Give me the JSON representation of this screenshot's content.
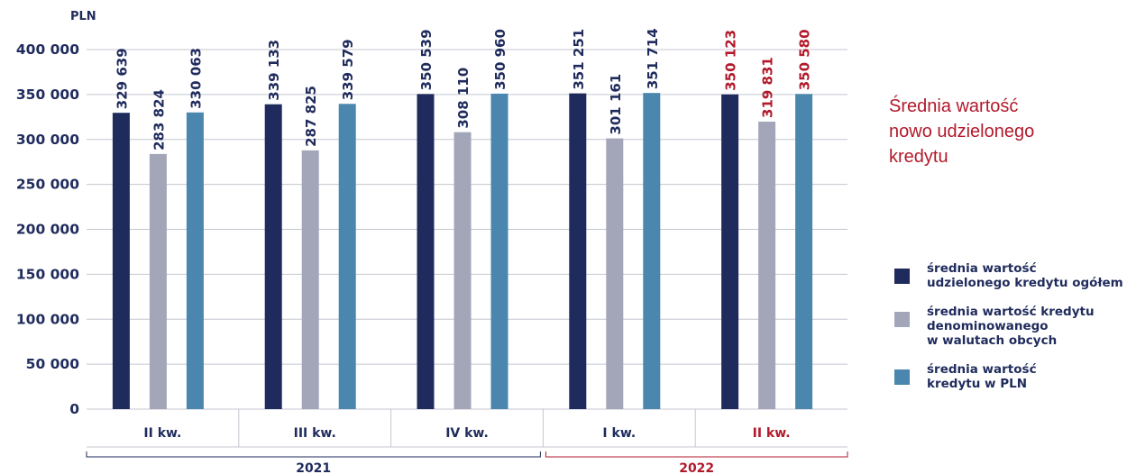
{
  "chart_data": {
    "type": "bar",
    "ylabel": "PLN",
    "ylim": [
      0,
      400000
    ],
    "ytick_values": [
      0,
      50000,
      100000,
      150000,
      200000,
      250000,
      300000,
      350000,
      400000
    ],
    "ytick_labels": [
      "0",
      "50 000",
      "100 000",
      "150 000",
      "200 000",
      "250 000",
      "300 000",
      "350 000",
      "400 000"
    ],
    "categories": [
      "II kw.",
      "III kw.",
      "IV kw.",
      "I kw.",
      "II kw."
    ],
    "years": [
      {
        "label": "2021",
        "categories": [
          0,
          1,
          2
        ]
      },
      {
        "label": "2022",
        "categories": [
          3,
          4
        ]
      }
    ],
    "series": [
      {
        "name": "średnia wartość udzielonego kredytu ogółem",
        "values": [
          329639,
          339133,
          350539,
          351251,
          350123
        ],
        "labels": [
          "329 639",
          "339 133",
          "350 539",
          "351 251",
          "350 123"
        ]
      },
      {
        "name": "średnia wartość kredytu denominowanego w walutach obcych",
        "values": [
          283824,
          287825,
          308110,
          301161,
          319831
        ],
        "labels": [
          "283 824",
          "287 825",
          "308 110",
          "301 161",
          "319 831"
        ]
      },
      {
        "name": "średnia wartość kredytu w PLN",
        "values": [
          330063,
          339579,
          350960,
          351714,
          350580
        ],
        "labels": [
          "330 063",
          "339 579",
          "350 960",
          "351 714",
          "350 580"
        ]
      }
    ],
    "title": "Średnia wartość nowo udzielonego kredytu",
    "grid": true,
    "legend_position": "right"
  },
  "title_lines": [
    "Średnia wartość",
    "nowo udzielonego",
    "kredytu"
  ],
  "legend": [
    {
      "label": "średnia wartość\nudzielonego kredytu ogółem"
    },
    {
      "label": "średnia wartość kredytu\ndenominowanego\nw walutach obcych"
    },
    {
      "label": "średnia wartość\nkredytu w PLN"
    }
  ],
  "colors": {
    "series": [
      "#1f2b5c",
      "#a3a6b8",
      "#4a86ad"
    ],
    "text": "#1f2b5c",
    "highlight": "#b2192b",
    "grid": "#c4c6d0"
  },
  "highlight_category": 4
}
